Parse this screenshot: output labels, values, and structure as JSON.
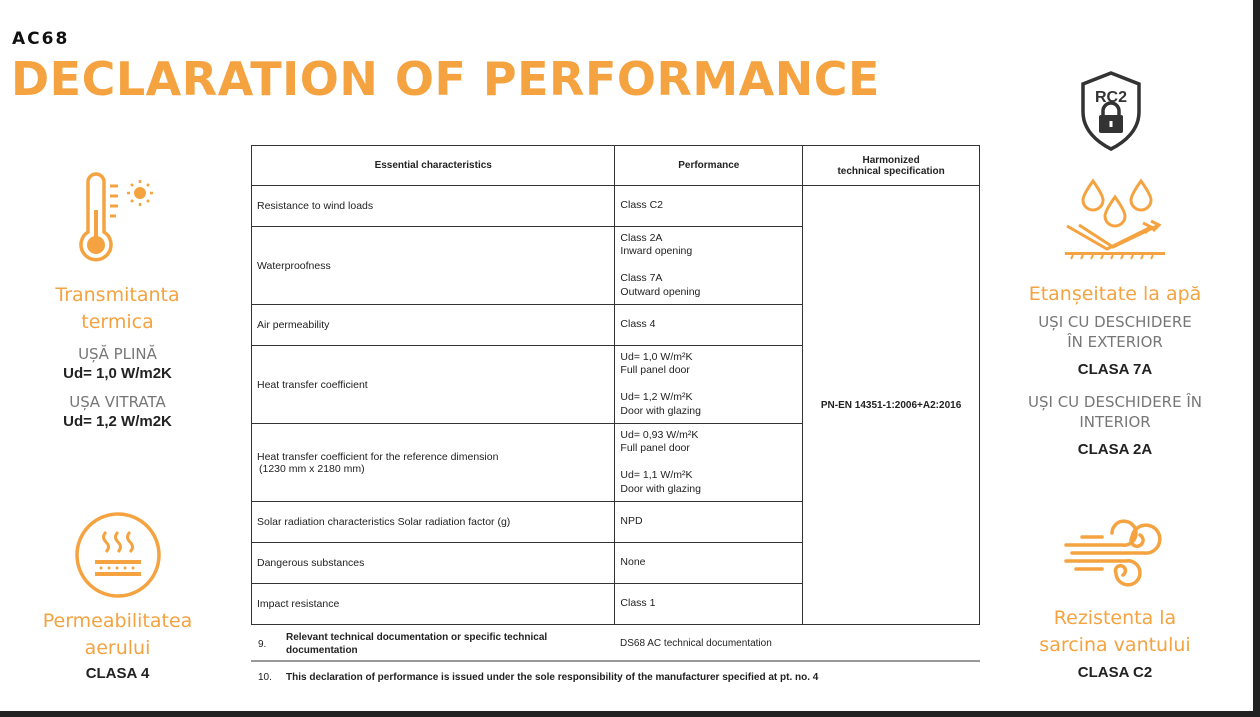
{
  "header": {
    "code": "AC68",
    "title": "DECLARATION OF PERFORMANCE"
  },
  "left": {
    "thermal": {
      "icon": "thermometer-sun-icon",
      "title_l1": "Transmitanta",
      "title_l2": "termica",
      "sub1": "UȘĂ PLINĂ",
      "val1": "Ud= 1,0 W/m2K",
      "sub2": "UȘA VITRATA",
      "val2": "Ud= 1,2 W/m2K"
    },
    "air": {
      "icon": "heat-waves-icon",
      "title_l1": "Permeabilitatea",
      "title_l2": "aerului",
      "val": "CLASA 4"
    }
  },
  "right": {
    "rc2": {
      "icon": "rc2-shield-lock-icon",
      "label": "RC2"
    },
    "water": {
      "icon": "water-drops-icon",
      "title": "Etanșeitate la apă",
      "sub1_l1": "UȘI CU DESCHIDERE",
      "sub1_l2": "ÎN EXTERIOR",
      "val1": "CLASA 7A",
      "sub2_l1": "UȘI CU DESCHIDERE ÎN",
      "sub2_l2": "INTERIOR",
      "val2": "CLASA 2A"
    },
    "wind": {
      "icon": "wind-icon",
      "title_l1": "Rezistenta la",
      "title_l2": "sarcina vantului",
      "val": "CLASA C2"
    }
  },
  "table": {
    "headers": [
      "Essential characteristics",
      "Performance",
      "Harmonized",
      "technical specification"
    ],
    "spec": "PN-EN 14351-1:2006+A2:2016",
    "rows": [
      {
        "c": "Resistance to wind loads",
        "p": [
          "Class C2"
        ]
      },
      {
        "c": "Waterproofness",
        "p": [
          "Class 2A",
          "Inward opening",
          "",
          "Class 7A",
          "Outward opening"
        ]
      },
      {
        "c": "Air permeability",
        "p": [
          "Class 4"
        ]
      },
      {
        "c": "Heat transfer coefficient",
        "p": [
          "Ud= 1,0 W/m²K",
          "Full panel door",
          "",
          "Ud= 1,2 W/m²K",
          "Door with glazing"
        ]
      },
      {
        "c": "Heat transfer coefficient for the reference dimension",
        "c2": "(1230 mm x 2180 mm)",
        "p": [
          "Ud= 0,93 W/m²K",
          "Full panel door",
          "",
          "Ud= 1,1 W/m²K",
          "Door with glazing"
        ]
      },
      {
        "c": "Solar radiation characteristics Solar radiation factor (g)",
        "p": [
          "NPD"
        ]
      },
      {
        "c": "Dangerous substances",
        "p": [
          "None"
        ]
      },
      {
        "c": "Impact resistance",
        "p": [
          "Class 1"
        ]
      }
    ]
  },
  "footer": {
    "n9": "9.",
    "t9_l1": "Relevant technical documentation or specific technical",
    "t9_l2": "documentation",
    "v9": "DS68 AC technical documentation",
    "n10": "10.",
    "t10": "This declaration of performance is issued under the sole responsibility of the manufacturer specified at pt. no. 4"
  },
  "colors": {
    "accent": "#F4A340",
    "text": "#222222"
  }
}
